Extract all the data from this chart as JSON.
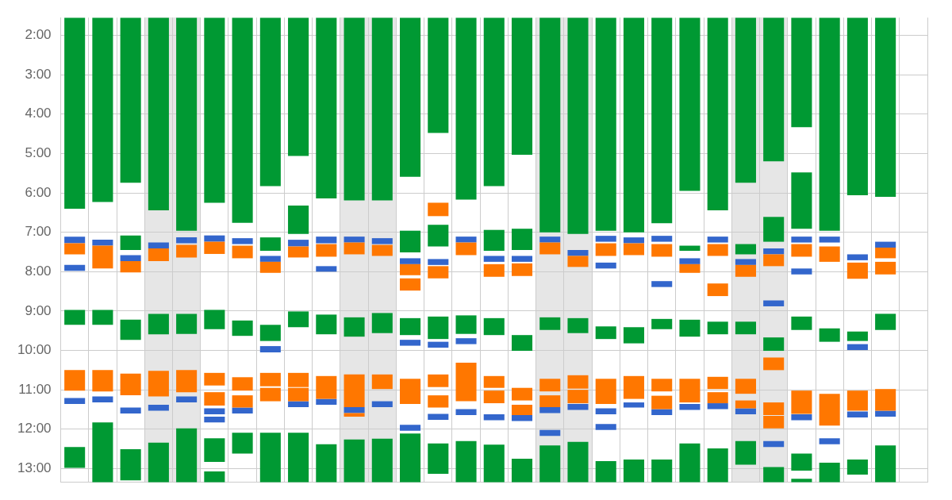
{
  "chart_data": {
    "type": "bar",
    "categories": [
      null,
      null,
      null,
      null,
      null,
      null,
      null,
      null,
      null,
      null,
      null,
      null,
      null,
      null,
      null,
      null,
      null,
      null,
      null,
      null,
      null,
      null,
      null,
      null,
      null,
      null,
      null,
      null,
      null,
      null,
      null
    ],
    "ylim": [
      13.35,
      1.55
    ],
    "yticks": [
      {
        "value": 2,
        "label": "2:00"
      },
      {
        "value": 3,
        "label": "3:00"
      },
      {
        "value": 4,
        "label": "4:00"
      },
      {
        "value": 5,
        "label": "5:00"
      },
      {
        "value": 6,
        "label": "6:00"
      },
      {
        "value": 7,
        "label": "7:00"
      },
      {
        "value": 8,
        "label": "8:00"
      },
      {
        "value": 9,
        "label": "9:00"
      },
      {
        "value": 10,
        "label": "10:00"
      },
      {
        "value": 11,
        "label": "11:00"
      },
      {
        "value": 12,
        "label": "12:00"
      },
      {
        "value": 13,
        "label": "13:00"
      }
    ],
    "grid": true,
    "tick_labels": "y",
    "series": [
      {
        "color": "#009933",
        "base": [
          1.55,
          1.55,
          1.55,
          1.55,
          1.55,
          1.55,
          1.55,
          1.55,
          1.55,
          1.55,
          1.55,
          1.55,
          1.55,
          1.55,
          1.55,
          1.55,
          1.55,
          1.55,
          1.55,
          1.55,
          1.55,
          1.55,
          1.55,
          1.55,
          1.55,
          1.55,
          1.55,
          1.55,
          1.55,
          1.55,
          null
        ],
        "values": [
          4.85,
          4.68,
          4.19,
          4.89,
          5.41,
          4.7,
          5.21,
          4.28,
          3.51,
          4.59,
          4.64,
          4.64,
          4.04,
          2.93,
          4.62,
          4.28,
          3.48,
          5.45,
          5.49,
          5.41,
          5.45,
          5.22,
          4.4,
          4.89,
          4.19,
          3.65,
          2.78,
          5.41,
          4.51,
          4.55,
          null
        ]
      },
      {
        "color": "#009933",
        "base": [
          8.97,
          8.97,
          7.08,
          9.07,
          9.07,
          8.97,
          9.24,
          7.13,
          6.32,
          9.09,
          9.16,
          9.05,
          6.96,
          6.81,
          9.11,
          6.94,
          6.91,
          9.16,
          9.18,
          9.39,
          9.41,
          9.2,
          7.34,
          9.27,
          7.3,
          6.61,
          5.48,
          9.44,
          9.52,
          9.07,
          null
        ],
        "values": [
          0.38,
          0.38,
          0.37,
          0.52,
          0.51,
          0.49,
          0.39,
          0.34,
          0.72,
          0.5,
          0.49,
          0.51,
          0.55,
          0.55,
          0.47,
          0.53,
          0.54,
          0.32,
          0.38,
          0.32,
          0.41,
          0.26,
          0.13,
          0.32,
          0.26,
          0.63,
          1.43,
          0.34,
          0.24,
          0.41,
          null
        ]
      },
      {
        "color": "#009933",
        "base": [
          12.45,
          11.83,
          9.22,
          12.34,
          11.98,
          12.23,
          12.09,
          9.35,
          9.01,
          12.38,
          12.26,
          12.24,
          9.18,
          9.14,
          12.3,
          9.18,
          9.61,
          12.41,
          12.32,
          12.81,
          12.77,
          12.77,
          9.22,
          12.49,
          9.27,
          9.67,
          9.14,
          12.85,
          12.77,
          12.41,
          null
        ],
        "values": [
          0.53,
          1.52,
          0.51,
          1.01,
          1.37,
          0.6,
          0.53,
          0.41,
          0.4,
          0.97,
          1.09,
          1.11,
          0.43,
          0.57,
          1.05,
          0.43,
          0.4,
          0.94,
          1.03,
          0.54,
          0.58,
          0.58,
          0.43,
          0.86,
          0.32,
          0.34,
          0.34,
          0.5,
          0.38,
          0.94,
          null
        ]
      },
      {
        "color": "#009933",
        "base": [
          null,
          null,
          12.51,
          null,
          null,
          13.07,
          null,
          12.09,
          12.09,
          null,
          null,
          null,
          12.11,
          12.36,
          null,
          12.39,
          12.75,
          null,
          null,
          null,
          null,
          null,
          12.36,
          null,
          12.3,
          12.96,
          12.62,
          null,
          null,
          null,
          null
        ],
        "values": [
          null,
          null,
          0.79,
          null,
          null,
          0.28,
          null,
          1.26,
          1.26,
          null,
          null,
          null,
          1.24,
          0.77,
          null,
          0.96,
          0.6,
          null,
          null,
          null,
          null,
          null,
          0.99,
          null,
          0.6,
          0.39,
          0.43,
          null,
          null,
          null,
          null
        ]
      },
      {
        "color": "#009933",
        "base": [
          null,
          null,
          null,
          null,
          null,
          null,
          null,
          null,
          null,
          null,
          null,
          null,
          null,
          null,
          null,
          null,
          null,
          null,
          null,
          null,
          null,
          null,
          null,
          null,
          null,
          null,
          13.26,
          null,
          null,
          null,
          null
        ],
        "values": [
          null,
          null,
          null,
          null,
          null,
          null,
          null,
          null,
          null,
          null,
          null,
          null,
          null,
          null,
          null,
          null,
          null,
          null,
          null,
          null,
          null,
          null,
          null,
          null,
          null,
          null,
          0.09,
          null,
          null,
          null,
          null
        ]
      },
      {
        "color": "#ff7700",
        "base": [
          7.28,
          7.34,
          7.73,
          7.41,
          7.32,
          7.24,
          7.34,
          7.75,
          7.36,
          7.3,
          7.26,
          7.32,
          7.81,
          6.25,
          7.26,
          7.81,
          7.79,
          7.26,
          7.6,
          7.28,
          7.28,
          7.3,
          7.81,
          7.3,
          7.83,
          7.56,
          7.3,
          7.36,
          7.77,
          7.39,
          null
        ],
        "values": [
          0.28,
          0.58,
          0.29,
          0.32,
          0.32,
          0.31,
          0.32,
          0.28,
          0.28,
          0.32,
          0.3,
          0.28,
          0.28,
          0.34,
          0.32,
          0.32,
          0.32,
          0.3,
          0.28,
          0.32,
          0.3,
          0.32,
          0.22,
          0.3,
          0.3,
          0.3,
          0.32,
          0.39,
          0.41,
          0.27,
          null
        ]
      },
      {
        "color": "#ff7700",
        "base": [
          10.5,
          10.5,
          10.59,
          10.52,
          10.5,
          10.57,
          10.68,
          10.57,
          10.57,
          10.65,
          10.61,
          10.61,
          8.17,
          7.86,
          10.31,
          10.65,
          10.95,
          10.72,
          10.63,
          10.72,
          10.65,
          10.72,
          10.72,
          8.3,
          10.72,
          10.18,
          11.02,
          11.1,
          11.02,
          7.75,
          null
        ],
        "values": [
          0.52,
          0.54,
          0.55,
          0.65,
          0.56,
          0.32,
          0.34,
          0.34,
          0.36,
          0.58,
          0.83,
          0.37,
          0.31,
          0.31,
          0.98,
          0.3,
          0.32,
          0.32,
          0.34,
          0.64,
          0.58,
          0.32,
          0.6,
          0.32,
          0.38,
          0.32,
          0.59,
          0.81,
          0.51,
          0.32,
          null
        ]
      },
      {
        "color": "#ff7700",
        "base": [
          null,
          null,
          null,
          null,
          null,
          11.06,
          11.14,
          10.95,
          10.95,
          null,
          11.59,
          null,
          10.72,
          10.61,
          null,
          11.02,
          11.38,
          11.14,
          11.0,
          null,
          null,
          11.15,
          null,
          10.67,
          11.27,
          11.32,
          null,
          null,
          null,
          10.98,
          null
        ],
        "values": [
          null,
          null,
          null,
          null,
          null,
          0.34,
          0.31,
          0.34,
          0.34,
          null,
          0.09,
          null,
          0.64,
          0.32,
          null,
          0.32,
          0.26,
          0.3,
          0.34,
          null,
          null,
          0.34,
          null,
          0.31,
          0.2,
          0.32,
          null,
          null,
          null,
          0.55,
          null
        ]
      },
      {
        "color": "#ff7700",
        "base": [
          null,
          null,
          null,
          null,
          null,
          null,
          null,
          null,
          null,
          null,
          null,
          null,
          null,
          11.14,
          null,
          null,
          null,
          null,
          null,
          null,
          null,
          null,
          null,
          11.06,
          null,
          11.66,
          null,
          null,
          null,
          null,
          null
        ],
        "values": [
          null,
          null,
          null,
          null,
          null,
          null,
          null,
          null,
          null,
          null,
          null,
          null,
          null,
          0.31,
          null,
          null,
          null,
          null,
          null,
          null,
          null,
          null,
          null,
          0.28,
          null,
          0.32,
          null,
          null,
          null,
          null,
          null
        ]
      },
      {
        "color": "#3366cc",
        "base": [
          7.11,
          7.19,
          7.58,
          7.26,
          7.13,
          7.08,
          7.15,
          7.6,
          7.19,
          7.11,
          7.11,
          7.15,
          7.66,
          7.68,
          7.11,
          7.6,
          7.6,
          7.11,
          7.45,
          7.09,
          7.13,
          7.09,
          7.66,
          7.11,
          7.68,
          7.41,
          7.11,
          7.11,
          7.56,
          7.24,
          null
        ],
        "values": [
          0.17,
          0.15,
          0.15,
          0.15,
          0.15,
          0.16,
          0.15,
          0.15,
          0.17,
          0.17,
          0.15,
          0.15,
          0.15,
          0.15,
          0.15,
          0.15,
          0.15,
          0.15,
          0.15,
          0.15,
          0.15,
          0.15,
          0.15,
          0.15,
          0.15,
          0.15,
          0.15,
          0.15,
          0.15,
          0.15,
          null
        ]
      },
      {
        "color": "#3366cc",
        "base": [
          7.83,
          11.17,
          11.45,
          11.38,
          11.17,
          11.47,
          11.45,
          9.89,
          11.29,
          7.86,
          11.44,
          11.29,
          9.73,
          9.78,
          9.69,
          11.62,
          11.64,
          11.44,
          11.36,
          7.77,
          11.32,
          8.24,
          11.36,
          11.34,
          11.47,
          8.73,
          7.92,
          12.23,
          9.84,
          11.53,
          null
        ],
        "values": [
          0.15,
          0.15,
          0.15,
          0.15,
          0.15,
          0.15,
          0.15,
          0.16,
          0.15,
          0.14,
          0.15,
          0.15,
          0.15,
          0.15,
          0.15,
          0.15,
          0.15,
          0.15,
          0.15,
          0.15,
          0.13,
          0.15,
          0.15,
          0.15,
          0.15,
          0.15,
          0.15,
          0.15,
          0.15,
          0.15,
          null
        ]
      },
      {
        "color": "#3366cc",
        "base": [
          11.21,
          null,
          null,
          null,
          null,
          11.68,
          null,
          null,
          null,
          11.23,
          null,
          null,
          11.89,
          11.61,
          11.49,
          null,
          null,
          12.02,
          null,
          11.47,
          null,
          11.49,
          null,
          null,
          null,
          12.3,
          11.62,
          null,
          11.55,
          null,
          null
        ],
        "values": [
          0.15,
          null,
          null,
          null,
          null,
          0.15,
          null,
          null,
          null,
          0.15,
          null,
          null,
          0.15,
          0.15,
          0.15,
          null,
          null,
          0.15,
          null,
          0.15,
          null,
          0.15,
          null,
          null,
          null,
          0.15,
          0.15,
          null,
          0.15,
          null,
          null
        ]
      },
      {
        "color": "#3366cc",
        "base": [
          null,
          null,
          null,
          null,
          null,
          null,
          null,
          null,
          null,
          null,
          null,
          null,
          null,
          null,
          null,
          null,
          null,
          null,
          null,
          11.87,
          null,
          null,
          null,
          null,
          null,
          null,
          null,
          null,
          null,
          null,
          null
        ],
        "values": [
          null,
          null,
          null,
          null,
          null,
          null,
          null,
          null,
          null,
          null,
          null,
          null,
          null,
          null,
          null,
          null,
          null,
          null,
          null,
          0.15,
          null,
          null,
          null,
          null,
          null,
          null,
          null,
          null,
          null,
          null,
          null
        ]
      }
    ]
  }
}
